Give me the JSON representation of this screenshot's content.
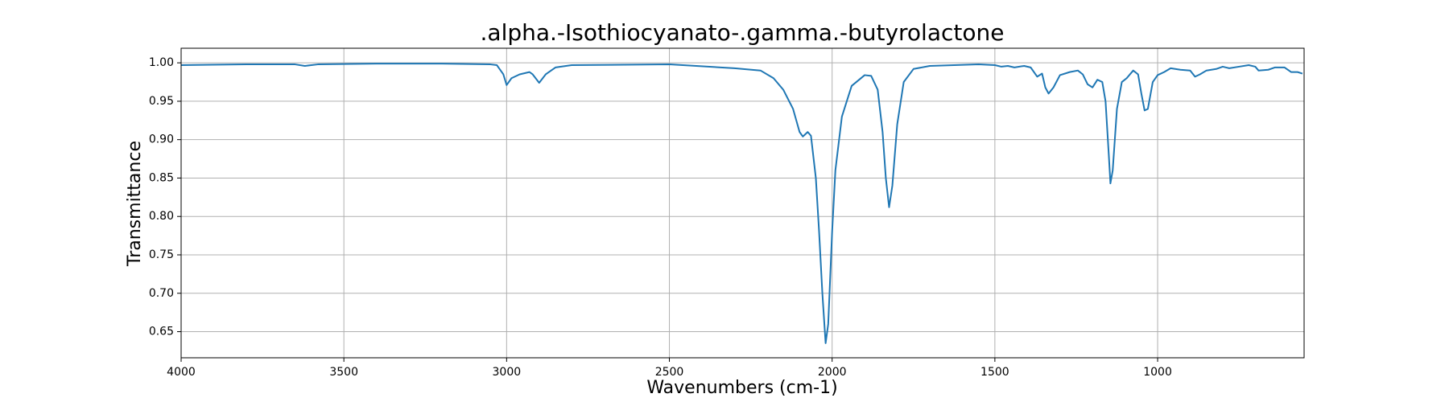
{
  "chart_data": {
    "type": "line",
    "title": ".alpha.-Isothiocyanato-.gamma.-butyrolactone",
    "xlabel": "Wavenumbers (cm-1)",
    "ylabel": "Transmittance",
    "color": "#1f77b4",
    "grid": true,
    "xlim": [
      4000,
      550
    ],
    "ylim": [
      0.616,
      1.019
    ],
    "xticks": [
      4000,
      3500,
      3000,
      2500,
      2000,
      1500,
      1000
    ],
    "yticks": [
      0.65,
      {
        "value": 0.7,
        "label": "0.70"
      },
      0.75,
      {
        "value": 0.8,
        "label": "0.80"
      },
      0.85,
      {
        "value": 0.9,
        "label": "0.90"
      },
      0.95,
      {
        "value": 1,
        "label": "1.00"
      }
    ],
    "x": [
      4000,
      3800,
      3650,
      3620,
      3580,
      3400,
      3200,
      3050,
      3030,
      3010,
      3000,
      2985,
      2960,
      2930,
      2920,
      2900,
      2880,
      2850,
      2800,
      2500,
      2300,
      2220,
      2180,
      2150,
      2120,
      2100,
      2090,
      2075,
      2065,
      2050,
      2040,
      2030,
      2020,
      2012,
      2000,
      1990,
      1970,
      1940,
      1900,
      1880,
      1860,
      1845,
      1835,
      1825,
      1815,
      1800,
      1780,
      1750,
      1700,
      1550,
      1500,
      1480,
      1460,
      1440,
      1410,
      1390,
      1370,
      1355,
      1345,
      1335,
      1320,
      1300,
      1270,
      1245,
      1230,
      1215,
      1200,
      1185,
      1170,
      1160,
      1150,
      1145,
      1138,
      1125,
      1110,
      1095,
      1075,
      1060,
      1050,
      1040,
      1030,
      1015,
      1000,
      980,
      960,
      930,
      900,
      885,
      870,
      850,
      820,
      800,
      780,
      750,
      720,
      700,
      690,
      660,
      640,
      610,
      590,
      570,
      555
    ],
    "values": [
      0.997,
      0.998,
      0.998,
      0.996,
      0.998,
      0.999,
      0.999,
      0.998,
      0.997,
      0.985,
      0.971,
      0.98,
      0.985,
      0.988,
      0.985,
      0.974,
      0.985,
      0.994,
      0.997,
      0.998,
      0.993,
      0.99,
      0.98,
      0.965,
      0.94,
      0.91,
      0.904,
      0.91,
      0.905,
      0.85,
      0.78,
      0.7,
      0.635,
      0.66,
      0.78,
      0.86,
      0.93,
      0.97,
      0.984,
      0.983,
      0.965,
      0.91,
      0.85,
      0.812,
      0.84,
      0.92,
      0.975,
      0.992,
      0.996,
      0.998,
      0.997,
      0.995,
      0.996,
      0.994,
      0.996,
      0.994,
      0.982,
      0.986,
      0.968,
      0.96,
      0.968,
      0.984,
      0.988,
      0.99,
      0.985,
      0.972,
      0.968,
      0.978,
      0.975,
      0.95,
      0.88,
      0.843,
      0.86,
      0.94,
      0.975,
      0.98,
      0.99,
      0.985,
      0.96,
      0.938,
      0.94,
      0.975,
      0.984,
      0.988,
      0.993,
      0.991,
      0.99,
      0.982,
      0.985,
      0.99,
      0.992,
      0.995,
      0.993,
      0.995,
      0.997,
      0.995,
      0.99,
      0.991,
      0.994,
      0.994,
      0.988,
      0.988,
      0.986
    ]
  }
}
